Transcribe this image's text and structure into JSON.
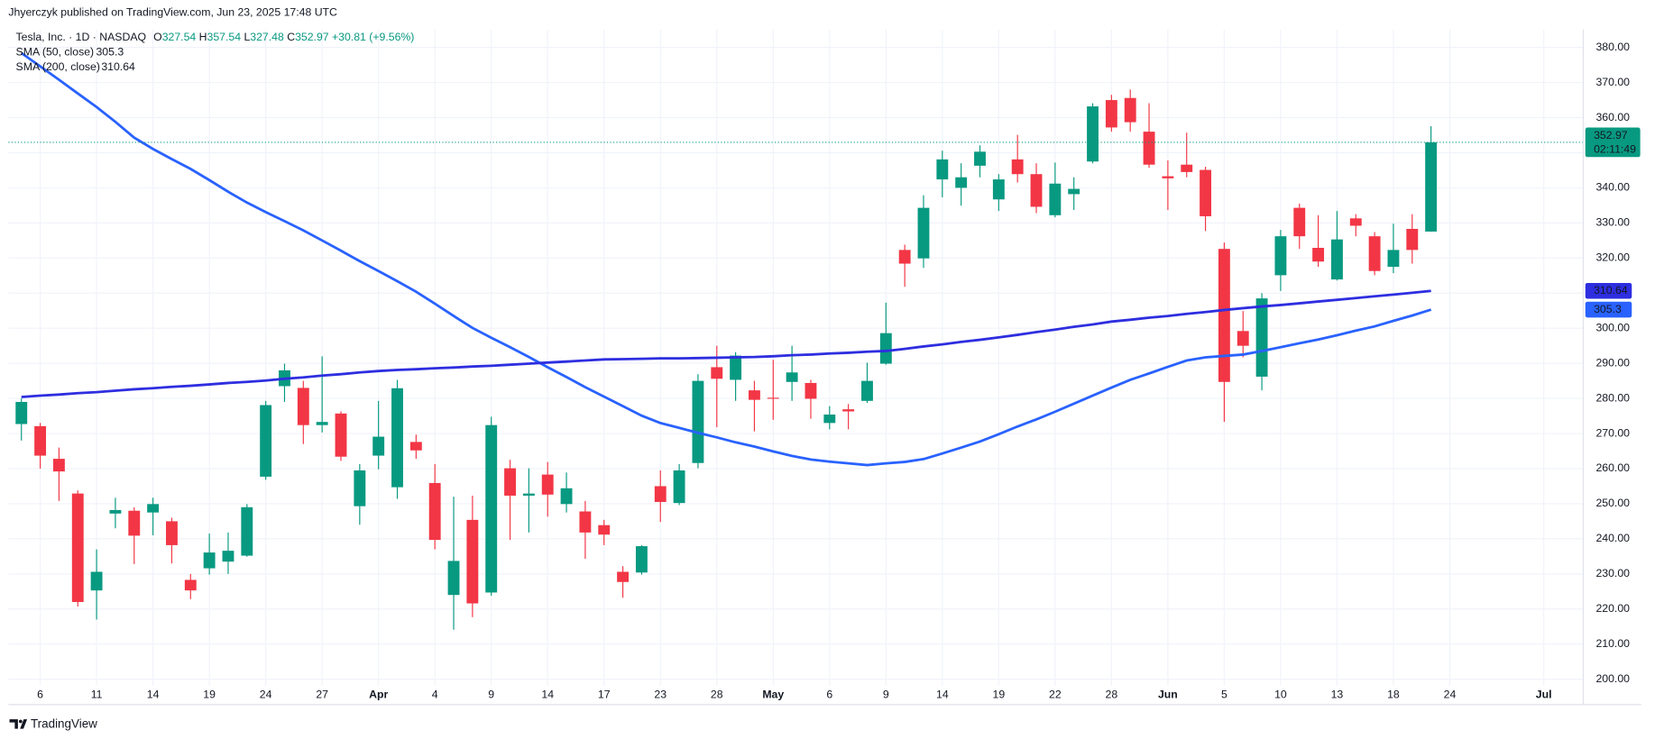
{
  "chart_data": {
    "type": "candlestick",
    "publisher": "Jhyerczyk published on TradingView.com, Jun 23, 2025 17:48 UTC",
    "symbol": "Tesla, Inc. · 1D · NASDAQ",
    "ohlc_labels": [
      "O",
      "H",
      "L",
      "C"
    ],
    "ohlc": [
      327.54,
      357.54,
      327.48,
      352.97
    ],
    "change": "+30.81 (+9.56%)",
    "countdown": "02:11:49",
    "footer": "TradingView",
    "up_color": "#089981",
    "down_color": "#f23645",
    "grid": true,
    "xlim": [
      -0.69,
      83.1
    ],
    "ylim": [
      198.2,
      385.1
    ],
    "xticks": [
      {
        "value": 1,
        "label": "6"
      },
      {
        "value": 4,
        "label": "11"
      },
      {
        "value": 7,
        "label": "14"
      },
      {
        "value": 10,
        "label": "19"
      },
      {
        "value": 13,
        "label": "24"
      },
      {
        "value": 16,
        "label": "27"
      },
      {
        "value": 19,
        "label": "Apr"
      },
      {
        "value": 22,
        "label": "4"
      },
      {
        "value": 25,
        "label": "9"
      },
      {
        "value": 28,
        "label": "14"
      },
      {
        "value": 31,
        "label": "17"
      },
      {
        "value": 34,
        "label": "23"
      },
      {
        "value": 37,
        "label": "28"
      },
      {
        "value": 40,
        "label": "May"
      },
      {
        "value": 43,
        "label": "6"
      },
      {
        "value": 46,
        "label": "9"
      },
      {
        "value": 49,
        "label": "14"
      },
      {
        "value": 52,
        "label": "19"
      },
      {
        "value": 55,
        "label": "22"
      },
      {
        "value": 58,
        "label": "28"
      },
      {
        "value": 61,
        "label": "Jun"
      },
      {
        "value": 64,
        "label": "5"
      },
      {
        "value": 67,
        "label": "10"
      },
      {
        "value": 70,
        "label": "13"
      },
      {
        "value": 73,
        "label": "18"
      },
      {
        "value": 76,
        "label": "24"
      },
      {
        "value": 81,
        "label": "Jul"
      }
    ],
    "yticks": [
      {
        "value": 200,
        "label": "200.00"
      },
      {
        "value": 210,
        "label": "210.00"
      },
      {
        "value": 220,
        "label": "220.00"
      },
      {
        "value": 230,
        "label": "230.00"
      },
      {
        "value": 240,
        "label": "240.00"
      },
      {
        "value": 250,
        "label": "250.00"
      },
      {
        "value": 260,
        "label": "260.00"
      },
      {
        "value": 270,
        "label": "270.00"
      },
      {
        "value": 280,
        "label": "280.00"
      },
      {
        "value": 290,
        "label": "290.00"
      },
      {
        "value": 300,
        "label": "300.00"
      },
      {
        "value": 310,
        "label": "310.00"
      },
      {
        "value": 320,
        "label": "320.00"
      },
      {
        "value": 330,
        "label": "330.00"
      },
      {
        "value": 340,
        "label": "340.00"
      },
      {
        "value": 350,
        "label": "350.00"
      },
      {
        "value": 360,
        "label": "360.00"
      },
      {
        "value": 370,
        "label": "370.00"
      },
      {
        "value": 380,
        "label": "380.00"
      }
    ],
    "open": [
      272.7,
      272.1,
      262.8,
      252.9,
      225.3,
      247.2,
      248.0,
      247.5,
      245.0,
      228.3,
      231.6,
      233.5,
      235.2,
      257.7,
      283.5,
      283.0,
      272.4,
      275.7,
      249.3,
      263.7,
      254.7,
      267.6,
      255.9,
      224.0,
      245.4,
      224.7,
      260.1,
      252.3,
      258.3,
      249.9,
      247.8,
      243.9,
      230.6,
      230.4,
      255.0,
      250.2,
      261.6,
      288.9,
      285.3,
      282.3,
      280.2,
      284.7,
      284.4,
      273.0,
      276.9,
      279.3,
      289.9,
      322.3,
      319.9,
      342.4,
      340.0,
      346.3,
      336.7,
      348.1,
      343.9,
      332.2,
      338.2,
      347.5,
      365.0,
      365.6,
      356.0,
      343.3,
      346.6,
      345.1,
      322.6,
      299.2,
      286.2,
      315.1,
      334.3,
      322.9,
      313.9,
      331.3,
      326.2,
      317.5,
      328.3,
      327.54
    ],
    "high": [
      280.0,
      273.0,
      266.0,
      253.8,
      237.0,
      251.7,
      249.0,
      251.7,
      246.0,
      230.0,
      241.5,
      241.8,
      249.9,
      279.3,
      289.9,
      285.0,
      292.0,
      276.3,
      261.3,
      279.3,
      285.3,
      269.7,
      261.3,
      252.0,
      252.3,
      274.8,
      262.5,
      260.1,
      261.9,
      258.9,
      250.8,
      245.4,
      232.2,
      238.2,
      259.5,
      261.3,
      286.9,
      295.0,
      293.2,
      285.0,
      291.0,
      295.0,
      285.3,
      277.8,
      278.4,
      290.2,
      307.3,
      323.8,
      337.9,
      350.6,
      347.0,
      352.1,
      343.9,
      355.1,
      347.0,
      347.2,
      343.0,
      364.1,
      366.5,
      368.0,
      364.1,
      347.8,
      355.7,
      346.0,
      324.4,
      304.9,
      310.0,
      328.0,
      335.5,
      332.2,
      333.4,
      332.5,
      327.4,
      329.8,
      332.5,
      357.54
    ],
    "low": [
      268.0,
      260.0,
      250.8,
      220.7,
      217.0,
      243.0,
      232.8,
      241.0,
      233.0,
      222.8,
      229.8,
      230.0,
      234.9,
      256.8,
      279.0,
      267.0,
      270.3,
      262.2,
      244.0,
      259.8,
      251.4,
      262.8,
      237.0,
      214.1,
      217.7,
      223.8,
      239.7,
      241.8,
      246.3,
      247.5,
      234.3,
      238.2,
      223.2,
      229.8,
      244.8,
      249.6,
      260.1,
      271.8,
      279.3,
      270.6,
      273.9,
      279.3,
      274.2,
      271.2,
      271.2,
      278.7,
      289.6,
      311.8,
      317.2,
      337.3,
      334.9,
      343.0,
      333.4,
      341.5,
      332.8,
      331.6,
      333.7,
      347.0,
      356.0,
      356.0,
      345.7,
      333.7,
      343.0,
      327.7,
      273.3,
      291.7,
      282.3,
      310.6,
      322.6,
      317.5,
      313.6,
      326.2,
      315.1,
      315.7,
      318.4,
      327.48
    ],
    "close": [
      279.0,
      263.7,
      259.2,
      222.0,
      230.6,
      248.2,
      240.9,
      249.9,
      238.2,
      225.3,
      236.1,
      236.6,
      249.0,
      278.1,
      288.0,
      272.4,
      273.3,
      263.4,
      259.5,
      269.1,
      282.9,
      265.2,
      239.7,
      233.7,
      221.6,
      272.4,
      252.3,
      252.9,
      252.6,
      254.4,
      241.8,
      241.2,
      227.7,
      237.9,
      250.5,
      259.5,
      285.0,
      285.6,
      292.2,
      279.6,
      279.9,
      287.4,
      279.9,
      275.4,
      276.3,
      285.0,
      298.6,
      318.4,
      334.3,
      348.1,
      343.0,
      350.3,
      342.4,
      343.9,
      334.6,
      341.2,
      339.7,
      363.2,
      357.2,
      358.7,
      346.6,
      342.7,
      344.5,
      331.9,
      284.7,
      295.0,
      308.5,
      326.2,
      326.2,
      319.0,
      325.3,
      329.2,
      316.3,
      322.3,
      322.3,
      352.97
    ],
    "series": [
      {
        "name": "SMA (50, close)",
        "color": "#2962ff",
        "values": [
          378.4,
          374.6,
          370.8,
          366.9,
          363.0,
          358.8,
          354.3,
          351.1,
          348.2,
          345.4,
          342.2,
          338.9,
          335.8,
          333.1,
          330.5,
          327.9,
          325.0,
          322.1,
          319.1,
          316.3,
          313.4,
          310.4,
          307.0,
          303.5,
          300.1,
          297.3,
          294.6,
          291.8,
          288.9,
          286.1,
          283.2,
          280.5,
          277.8,
          275.1,
          273.0,
          271.6,
          270.2,
          268.9,
          267.5,
          266.3,
          264.9,
          263.6,
          262.6,
          262.0,
          261.5,
          261.0,
          261.5,
          261.9,
          262.7,
          264.3,
          266.0,
          267.7,
          269.8,
          272.0,
          274.0,
          276.2,
          278.5,
          280.8,
          283.1,
          285.3,
          287.1,
          289.0,
          290.8,
          291.7,
          292.1,
          292.5,
          293.5,
          294.6,
          295.7,
          296.8,
          298.0,
          299.3,
          300.5,
          302.1,
          303.6,
          305.3
        ]
      },
      {
        "name": "SMA (200, close)",
        "color": "#2e2ee0",
        "values": [
          280.4,
          280.8,
          281.1,
          281.5,
          281.8,
          282.2,
          282.6,
          282.9,
          283.3,
          283.6,
          284.0,
          284.4,
          284.7,
          285.1,
          285.6,
          286.0,
          286.5,
          286.9,
          287.4,
          287.8,
          288.1,
          288.3,
          288.6,
          288.8,
          289.1,
          289.3,
          289.6,
          289.9,
          290.2,
          290.5,
          290.8,
          291.1,
          291.2,
          291.3,
          291.4,
          291.4,
          291.5,
          291.6,
          291.7,
          291.8,
          292.0,
          292.3,
          292.5,
          292.8,
          293.0,
          293.3,
          293.5,
          294.1,
          294.8,
          295.4,
          296.1,
          296.7,
          297.4,
          298.1,
          298.9,
          299.6,
          300.4,
          301.1,
          301.9,
          302.4,
          303.0,
          303.5,
          304.1,
          304.6,
          305.2,
          305.7,
          306.2,
          306.6,
          307.1,
          307.6,
          308.1,
          308.6,
          309.1,
          309.6,
          310.1,
          310.64
        ]
      }
    ]
  }
}
